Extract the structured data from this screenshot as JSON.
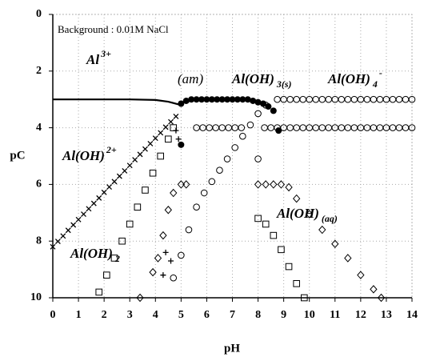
{
  "chart_data": {
    "type": "scatter",
    "xlabel": "pH",
    "ylabel": "pC",
    "xlim": [
      0,
      14
    ],
    "ylim": [
      0,
      10
    ],
    "y_inverted": true,
    "xticks": [
      0,
      1,
      2,
      3,
      4,
      5,
      6,
      7,
      8,
      9,
      10,
      11,
      12,
      13,
      14
    ],
    "yticks": [
      0,
      2,
      4,
      6,
      8,
      10
    ],
    "grid": true,
    "annotations": [
      {
        "text": "Background : 0.01M NaCl"
      },
      {
        "text": "Al",
        "sup": "3+"
      },
      {
        "text": "(am)"
      },
      {
        "text": "Al(OH)",
        "sub": "3(s)"
      },
      {
        "text": "Al(OH)",
        "sub": "4",
        "sup": "-"
      },
      {
        "text": "Al(OH)",
        "sup": "2+"
      },
      {
        "text": "Al(OH)",
        "sub": "2"
      },
      {
        "text": "Al(OH)",
        "sub": "(aq)"
      }
    ],
    "series": [
      {
        "marker": "line",
        "color": "#000000",
        "x": [
          0,
          1,
          2,
          3,
          4,
          4.5,
          4.8,
          5.0
        ],
        "values": [
          3,
          3,
          3,
          3,
          3.02,
          3.08,
          3.15,
          3.2
        ]
      },
      {
        "marker": "filled-circle",
        "color": "#000000",
        "x": [
          5.0,
          5.2,
          5.4,
          5.6,
          5.8,
          6.0,
          6.2,
          6.4,
          6.6,
          6.8,
          7.0,
          7.2,
          7.4,
          7.6,
          7.8,
          8.0,
          8.2,
          8.4,
          8.6,
          5.0,
          8.8
        ],
        "values": [
          3.15,
          3.05,
          3.0,
          3.0,
          3.0,
          3.0,
          3.0,
          3.0,
          3.0,
          3.0,
          3.0,
          3.0,
          3.0,
          3.0,
          3.05,
          3.1,
          3.15,
          3.25,
          3.4,
          4.6,
          4.1
        ]
      },
      {
        "marker": "open-circle",
        "color": "#000000",
        "x": [
          8.75,
          9.0,
          9.25,
          9.5,
          9.75,
          10.0,
          10.25,
          10.5,
          10.75,
          11.0,
          11.25,
          11.5,
          11.75,
          12.0,
          12.25,
          12.5,
          12.75,
          13.0,
          13.25,
          13.5,
          13.75,
          14.0,
          8.25,
          8.5,
          8.75,
          9.0,
          9.25,
          9.5,
          9.75,
          10.0,
          10.25,
          10.5,
          10.75,
          11.0,
          11.25,
          11.5,
          11.75,
          12.0,
          12.25,
          12.5,
          12.75,
          13.0,
          13.25,
          13.5,
          13.75,
          14.0,
          5.6,
          5.85,
          6.1,
          6.35,
          6.6,
          6.85,
          7.1,
          7.35,
          4.7,
          5.0,
          5.3,
          5.6,
          5.9,
          6.2,
          6.5,
          6.8,
          7.1,
          7.4,
          7.7,
          8.0,
          8.3,
          8.0
        ],
        "values": [
          3,
          3,
          3,
          3,
          3,
          3,
          3,
          3,
          3,
          3,
          3,
          3,
          3,
          3,
          3,
          3,
          3,
          3,
          3,
          3,
          3,
          3,
          4,
          4,
          4,
          4,
          4,
          4,
          4,
          4,
          4,
          4,
          4,
          4,
          4,
          4,
          4,
          4,
          4,
          4,
          4,
          4,
          4,
          4,
          4,
          4,
          4,
          4,
          4,
          4,
          4,
          4,
          4,
          4,
          9.3,
          8.5,
          7.6,
          6.8,
          6.3,
          5.9,
          5.5,
          5.1,
          4.7,
          4.3,
          3.9,
          3.5,
          3.2,
          5.1
        ]
      },
      {
        "marker": "cross",
        "color": "#000000",
        "x": [
          0,
          0.2,
          0.4,
          0.6,
          0.8,
          1.0,
          1.2,
          1.4,
          1.6,
          1.8,
          2.0,
          2.2,
          2.4,
          2.6,
          2.8,
          3.0,
          3.2,
          3.4,
          3.6,
          3.8,
          4.0,
          4.2,
          4.4,
          4.6,
          4.8
        ],
        "values": [
          8.2,
          8.01,
          7.82,
          7.62,
          7.43,
          7.24,
          7.05,
          6.86,
          6.67,
          6.48,
          6.28,
          6.09,
          5.9,
          5.71,
          5.52,
          5.33,
          5.13,
          4.94,
          4.75,
          4.56,
          4.37,
          4.18,
          3.98,
          3.79,
          3.6
        ]
      },
      {
        "marker": "square",
        "color": "#000000",
        "x": [
          1.8,
          2.1,
          2.4,
          2.7,
          3.0,
          3.3,
          3.6,
          3.9,
          4.2,
          4.5,
          4.7,
          8.0,
          8.3,
          8.6,
          8.9,
          9.2,
          9.5,
          9.8
        ],
        "values": [
          9.8,
          9.2,
          8.6,
          8.0,
          7.4,
          6.8,
          6.2,
          5.6,
          5.0,
          4.4,
          4.0,
          7.2,
          7.4,
          7.8,
          8.3,
          8.9,
          9.5,
          10
        ]
      },
      {
        "marker": "diamond",
        "color": "#000000",
        "x": [
          3.4,
          3.9,
          4.1,
          4.3,
          4.5,
          4.7,
          5.0,
          5.2,
          8.0,
          8.3,
          8.6,
          8.9,
          9.2,
          9.5,
          10.0,
          10.5,
          11.0,
          11.5,
          12.0,
          12.5,
          12.8
        ],
        "values": [
          10,
          9.1,
          8.6,
          7.8,
          6.9,
          6.3,
          6.0,
          6.0,
          6.0,
          6.0,
          6.0,
          6.0,
          6.1,
          6.5,
          7.05,
          7.6,
          8.1,
          8.6,
          9.2,
          9.7,
          10
        ]
      },
      {
        "marker": "plus",
        "color": "#000000",
        "x": [
          4.3,
          4.4,
          4.6,
          4.8,
          4.9
        ],
        "values": [
          9.2,
          8.4,
          8.7,
          4.1,
          4.4
        ]
      }
    ]
  }
}
